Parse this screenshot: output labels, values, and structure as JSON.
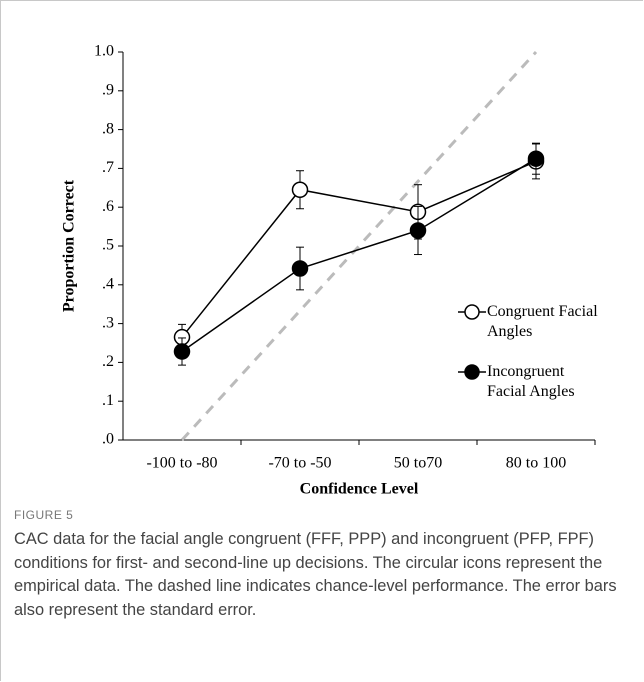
{
  "chart_data": {
    "type": "line",
    "x_label": "Confidence Level",
    "y_label": "Proportion Correct",
    "categories": [
      "-100 to -80",
      "-70 to -50",
      "50 to70",
      "80 to 100"
    ],
    "series": [
      {
        "name": "Congruent Facial Angles",
        "color": "#000000",
        "fill": "#ffffff",
        "values": [
          0.265,
          0.645,
          0.588,
          0.718
        ],
        "errors": [
          0.033,
          0.049,
          0.07,
          0.045
        ]
      },
      {
        "name": "Incongruent Facial Angles",
        "color": "#000000",
        "fill": "#000000",
        "values": [
          0.228,
          0.442,
          0.54,
          0.725
        ],
        "errors": [
          0.035,
          0.055,
          0.062,
          0.04
        ]
      }
    ],
    "reference_line": {
      "values": [
        0,
        1
      ],
      "color": "#bbbbbb",
      "dashed": true
    },
    "ylim": [
      0,
      1
    ],
    "yticks": [
      {
        "value": 0,
        "label": ".0"
      },
      {
        "value": 0.1,
        "label": ".1"
      },
      {
        "value": 0.2,
        "label": ".2"
      },
      {
        "value": 0.3,
        "label": ".3"
      },
      {
        "value": 0.4,
        "label": ".4"
      },
      {
        "value": 0.5,
        "label": ".5"
      },
      {
        "value": 0.6,
        "label": ".6"
      },
      {
        "value": 0.7,
        "label": ".7"
      },
      {
        "value": 0.8,
        "label": ".8"
      },
      {
        "value": 0.9,
        "label": ".9"
      },
      {
        "value": 1,
        "label": "1.0"
      }
    ]
  },
  "caption": {
    "label": "FIGURE 5",
    "text": "CAC data for the facial angle congruent (FFF, PPP) and incongruent (PFP, FPF) conditions for first- and second-line up decisions. The circular icons represent the empirical data. The dashed line indicates chance-level performance. The error bars also represent the standard error."
  }
}
